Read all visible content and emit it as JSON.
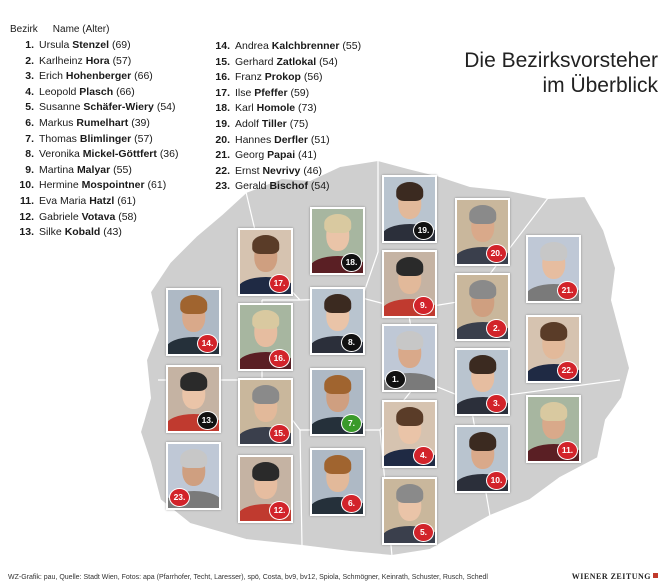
{
  "title": {
    "line1": "Die Bezirksvorsteher",
    "line2": "im Überblick"
  },
  "list_header": {
    "col_district": "Bezirk",
    "col_name": "Name (Alter)"
  },
  "officials": [
    {
      "num": "1.",
      "first": "Ursula",
      "last": "Stenzel",
      "age": "(69)"
    },
    {
      "num": "2.",
      "first": "Karlheinz",
      "last": "Hora",
      "age": "(57)"
    },
    {
      "num": "3.",
      "first": "Erich",
      "last": "Hohenberger",
      "age": "(66)"
    },
    {
      "num": "4.",
      "first": "Leopold",
      "last": "Plasch",
      "age": "(66)"
    },
    {
      "num": "5.",
      "first": "Susanne",
      "last": "Schäfer-Wiery",
      "age": "(54)"
    },
    {
      "num": "6.",
      "first": "Markus",
      "last": "Rumelhart",
      "age": "(39)"
    },
    {
      "num": "7.",
      "first": "Thomas",
      "last": "Blimlinger",
      "age": "(57)"
    },
    {
      "num": "8.",
      "first": "Veronika",
      "last": "Mickel-Göttfert",
      "age": "(36)"
    },
    {
      "num": "9.",
      "first": "Martina",
      "last": "Malyar",
      "age": "(55)"
    },
    {
      "num": "10.",
      "first": "Hermine",
      "last": "Mospointner",
      "age": "(61)"
    },
    {
      "num": "11.",
      "first": "Eva Maria",
      "last": "Hatzl",
      "age": "(61)"
    },
    {
      "num": "12.",
      "first": "Gabriele",
      "last": "Votava",
      "age": "(58)"
    },
    {
      "num": "13.",
      "first": "Silke",
      "last": "Kobald",
      "age": "(43)"
    },
    {
      "num": "14.",
      "first": "Andrea",
      "last": "Kalchbrenner",
      "age": "(55)"
    },
    {
      "num": "15.",
      "first": "Gerhard",
      "last": "Zatlokal",
      "age": "(54)"
    },
    {
      "num": "16.",
      "first": "Franz",
      "last": "Prokop",
      "age": "(56)"
    },
    {
      "num": "17.",
      "first": "Ilse",
      "last": "Pfeffer",
      "age": "(59)"
    },
    {
      "num": "18.",
      "first": "Karl",
      "last": "Homole",
      "age": "(73)"
    },
    {
      "num": "19.",
      "first": "Adolf",
      "last": "Tiller",
      "age": "(75)"
    },
    {
      "num": "20.",
      "first": "Hannes",
      "last": "Derfler",
      "age": "(51)"
    },
    {
      "num": "21.",
      "first": "Georg",
      "last": "Papai",
      "age": "(41)"
    },
    {
      "num": "22.",
      "first": "Ernst",
      "last": "Nevrivy",
      "age": "(46)"
    },
    {
      "num": "23.",
      "first": "Gerald",
      "last": "Bischof",
      "age": "(54)"
    }
  ],
  "photos": [
    {
      "badge": "19.",
      "party": "övp"
    },
    {
      "badge": "20.",
      "party": "spö"
    },
    {
      "badge": "18.",
      "party": "övp"
    },
    {
      "badge": "17.",
      "party": "spö"
    },
    {
      "badge": "21.",
      "party": "spö"
    },
    {
      "badge": "9.",
      "party": "spö"
    },
    {
      "badge": "14.",
      "party": "spö"
    },
    {
      "badge": "8.",
      "party": "övp"
    },
    {
      "badge": "2.",
      "party": "spö"
    },
    {
      "badge": "16.",
      "party": "spö"
    },
    {
      "badge": "22.",
      "party": "spö"
    },
    {
      "badge": "1.",
      "party": "övp"
    },
    {
      "badge": "13.",
      "party": "övp"
    },
    {
      "badge": "7.",
      "party": "grüne"
    },
    {
      "badge": "3.",
      "party": "spö"
    },
    {
      "badge": "15.",
      "party": "spö"
    },
    {
      "badge": "11.",
      "party": "spö"
    },
    {
      "badge": "4.",
      "party": "spö"
    },
    {
      "badge": "23.",
      "party": "spö"
    },
    {
      "badge": "12.",
      "party": "spö"
    },
    {
      "badge": "6.",
      "party": "spö"
    },
    {
      "badge": "10.",
      "party": "spö"
    },
    {
      "badge": "5.",
      "party": "spö"
    }
  ],
  "colors": {
    "spö": "#d2232a",
    "övp": "#111111",
    "grüne": "#3a9a2a",
    "map_fill": "#cfcfcf"
  },
  "footer": {
    "credits": "WZ-Grafik: pau, Quelle: Stadt Wien, Fotos: apa (Pfarrhofer, Techt, Laresser), spö, Costa, bv9, bv12, Spiola, Schmögner, Keinrath, Schuster, Rusch, Schedl",
    "brand": "WIENER ZEITUNG"
  }
}
